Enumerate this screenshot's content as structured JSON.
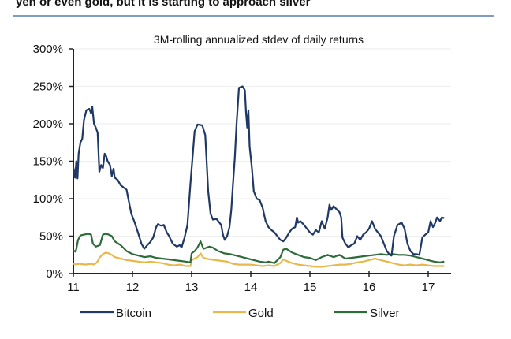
{
  "header": {
    "text": "yen or even gold, but it is starting to approach silver"
  },
  "chart_data": {
    "type": "line",
    "title": "3M-rolling annualized stdev of daily returns",
    "xlabel": "",
    "ylabel": "",
    "xlim": [
      11,
      17.3
    ],
    "ylim": [
      0,
      300
    ],
    "x_ticks": [
      11,
      12,
      13,
      14,
      15,
      16,
      17
    ],
    "x_tick_labels": [
      "11",
      "12",
      "13",
      "14",
      "15",
      "16",
      "17"
    ],
    "y_ticks": [
      0,
      50,
      100,
      150,
      200,
      250,
      300
    ],
    "y_tick_labels": [
      "0%",
      "50%",
      "100%",
      "150%",
      "200%",
      "250%",
      "300%"
    ],
    "grid": "horizontal-light",
    "legend": {
      "placement": "bottom",
      "entries": [
        "Bitcoin",
        "Gold",
        "Silver"
      ]
    },
    "series": [
      {
        "name": "Bitcoin",
        "color": "#1f3864",
        "points": [
          [
            11.0,
            142
          ],
          [
            11.03,
            128
          ],
          [
            11.05,
            150
          ],
          [
            11.07,
            127
          ],
          [
            11.09,
            160
          ],
          [
            11.12,
            175
          ],
          [
            11.15,
            180
          ],
          [
            11.18,
            205
          ],
          [
            11.22,
            218
          ],
          [
            11.27,
            220
          ],
          [
            11.3,
            214
          ],
          [
            11.32,
            223
          ],
          [
            11.35,
            200
          ],
          [
            11.38,
            195
          ],
          [
            11.41,
            188
          ],
          [
            11.43,
            155
          ],
          [
            11.44,
            136
          ],
          [
            11.47,
            145
          ],
          [
            11.5,
            141
          ],
          [
            11.53,
            160
          ],
          [
            11.55,
            158
          ],
          [
            11.58,
            150
          ],
          [
            11.62,
            145
          ],
          [
            11.65,
            130
          ],
          [
            11.68,
            140
          ],
          [
            11.7,
            128
          ],
          [
            11.75,
            125
          ],
          [
            11.8,
            118
          ],
          [
            11.85,
            115
          ],
          [
            11.9,
            112
          ],
          [
            11.93,
            100
          ],
          [
            11.98,
            80
          ],
          [
            12.03,
            70
          ],
          [
            12.08,
            58
          ],
          [
            12.12,
            48
          ],
          [
            12.15,
            40
          ],
          [
            12.2,
            33
          ],
          [
            12.25,
            38
          ],
          [
            12.3,
            42
          ],
          [
            12.35,
            48
          ],
          [
            12.4,
            62
          ],
          [
            12.43,
            66
          ],
          [
            12.48,
            64
          ],
          [
            12.53,
            65
          ],
          [
            12.58,
            55
          ],
          [
            12.62,
            50
          ],
          [
            12.68,
            40
          ],
          [
            12.75,
            36
          ],
          [
            12.8,
            38
          ],
          [
            12.83,
            35
          ],
          [
            12.88,
            48
          ],
          [
            12.93,
            65
          ],
          [
            12.98,
            120
          ],
          [
            13.05,
            190
          ],
          [
            13.1,
            199
          ],
          [
            13.18,
            198
          ],
          [
            13.23,
            185
          ],
          [
            13.28,
            110
          ],
          [
            13.32,
            80
          ],
          [
            13.36,
            72
          ],
          [
            13.42,
            73
          ],
          [
            13.47,
            68
          ],
          [
            13.5,
            65
          ],
          [
            13.53,
            52
          ],
          [
            13.56,
            45
          ],
          [
            13.6,
            50
          ],
          [
            13.64,
            62
          ],
          [
            13.67,
            85
          ],
          [
            13.7,
            120
          ],
          [
            13.73,
            155
          ],
          [
            13.76,
            200
          ],
          [
            13.8,
            248
          ],
          [
            13.86,
            250
          ],
          [
            13.9,
            245
          ],
          [
            13.92,
            215
          ],
          [
            13.94,
            195
          ],
          [
            13.96,
            218
          ],
          [
            13.98,
            170
          ],
          [
            14.02,
            140
          ],
          [
            14.05,
            110
          ],
          [
            14.1,
            100
          ],
          [
            14.15,
            98
          ],
          [
            14.2,
            88
          ],
          [
            14.25,
            70
          ],
          [
            14.3,
            62
          ],
          [
            14.35,
            58
          ],
          [
            14.4,
            55
          ],
          [
            14.45,
            50
          ],
          [
            14.5,
            45
          ],
          [
            14.55,
            43
          ],
          [
            14.6,
            48
          ],
          [
            14.65,
            55
          ],
          [
            14.7,
            60
          ],
          [
            14.75,
            62
          ],
          [
            14.78,
            75
          ],
          [
            14.8,
            68
          ],
          [
            14.84,
            70
          ],
          [
            14.9,
            65
          ],
          [
            14.95,
            60
          ],
          [
            15.0,
            55
          ],
          [
            15.05,
            52
          ],
          [
            15.1,
            58
          ],
          [
            15.15,
            55
          ],
          [
            15.2,
            70
          ],
          [
            15.25,
            60
          ],
          [
            15.3,
            75
          ],
          [
            15.33,
            92
          ],
          [
            15.36,
            85
          ],
          [
            15.4,
            90
          ],
          [
            15.45,
            86
          ],
          [
            15.5,
            82
          ],
          [
            15.53,
            75
          ],
          [
            15.55,
            48
          ],
          [
            15.6,
            40
          ],
          [
            15.65,
            35
          ],
          [
            15.7,
            38
          ],
          [
            15.75,
            40
          ],
          [
            15.8,
            50
          ],
          [
            15.85,
            45
          ],
          [
            15.9,
            52
          ],
          [
            15.95,
            55
          ],
          [
            16.0,
            60
          ],
          [
            16.05,
            70
          ],
          [
            16.1,
            60
          ],
          [
            16.15,
            55
          ],
          [
            16.2,
            50
          ],
          [
            16.25,
            40
          ],
          [
            16.3,
            30
          ],
          [
            16.35,
            25
          ],
          [
            16.38,
            24
          ],
          [
            16.42,
            50
          ],
          [
            16.48,
            65
          ],
          [
            16.55,
            68
          ],
          [
            16.6,
            60
          ],
          [
            16.65,
            40
          ],
          [
            16.7,
            30
          ],
          [
            16.75,
            26
          ],
          [
            16.8,
            26
          ],
          [
            16.85,
            25
          ],
          [
            16.9,
            48
          ],
          [
            16.95,
            52
          ],
          [
            17.0,
            55
          ],
          [
            17.04,
            70
          ],
          [
            17.08,
            62
          ],
          [
            17.12,
            68
          ],
          [
            17.15,
            75
          ],
          [
            17.2,
            70
          ],
          [
            17.23,
            75
          ],
          [
            17.27,
            74
          ]
        ]
      },
      {
        "name": "Gold",
        "color": "#e8b84a",
        "points": [
          [
            11.0,
            13
          ],
          [
            11.05,
            12
          ],
          [
            11.1,
            13
          ],
          [
            11.2,
            12
          ],
          [
            11.3,
            13
          ],
          [
            11.35,
            12
          ],
          [
            11.4,
            15
          ],
          [
            11.45,
            22
          ],
          [
            11.5,
            26
          ],
          [
            11.55,
            28
          ],
          [
            11.6,
            27
          ],
          [
            11.65,
            25
          ],
          [
            11.7,
            22
          ],
          [
            11.8,
            20
          ],
          [
            11.9,
            18
          ],
          [
            12.0,
            17
          ],
          [
            12.1,
            16
          ],
          [
            12.2,
            15
          ],
          [
            12.3,
            16
          ],
          [
            12.4,
            15
          ],
          [
            12.5,
            14
          ],
          [
            12.6,
            12
          ],
          [
            12.7,
            11
          ],
          [
            12.8,
            12
          ],
          [
            12.9,
            10
          ],
          [
            12.98,
            10
          ],
          [
            13.0,
            18
          ],
          [
            13.05,
            20
          ],
          [
            13.1,
            22
          ],
          [
            13.15,
            27
          ],
          [
            13.2,
            21
          ],
          [
            13.3,
            19
          ],
          [
            13.4,
            18
          ],
          [
            13.5,
            17
          ],
          [
            13.6,
            16
          ],
          [
            13.7,
            13
          ],
          [
            13.8,
            12
          ],
          [
            13.9,
            12
          ],
          [
            14.0,
            12
          ],
          [
            14.1,
            11
          ],
          [
            14.2,
            10
          ],
          [
            14.3,
            11
          ],
          [
            14.4,
            10
          ],
          [
            14.5,
            14
          ],
          [
            14.55,
            19
          ],
          [
            14.6,
            17
          ],
          [
            14.7,
            14
          ],
          [
            14.8,
            12
          ],
          [
            14.9,
            11
          ],
          [
            15.0,
            10
          ],
          [
            15.1,
            9
          ],
          [
            15.2,
            9
          ],
          [
            15.3,
            10
          ],
          [
            15.4,
            11
          ],
          [
            15.5,
            12
          ],
          [
            15.6,
            12
          ],
          [
            15.7,
            13
          ],
          [
            15.8,
            15
          ],
          [
            15.9,
            16
          ],
          [
            16.0,
            18
          ],
          [
            16.1,
            20
          ],
          [
            16.2,
            18
          ],
          [
            16.3,
            16
          ],
          [
            16.4,
            14
          ],
          [
            16.5,
            12
          ],
          [
            16.6,
            11
          ],
          [
            16.7,
            12
          ],
          [
            16.8,
            11
          ],
          [
            16.9,
            12
          ],
          [
            17.0,
            11
          ],
          [
            17.1,
            10
          ],
          [
            17.2,
            10
          ],
          [
            17.27,
            10
          ]
        ]
      },
      {
        "name": "Silver",
        "color": "#2e6b3a",
        "points": [
          [
            11.0,
            31
          ],
          [
            11.04,
            29
          ],
          [
            11.08,
            45
          ],
          [
            11.12,
            51
          ],
          [
            11.18,
            52
          ],
          [
            11.25,
            53
          ],
          [
            11.3,
            52
          ],
          [
            11.33,
            40
          ],
          [
            11.38,
            36
          ],
          [
            11.45,
            38
          ],
          [
            11.5,
            52
          ],
          [
            11.55,
            53
          ],
          [
            11.6,
            52
          ],
          [
            11.65,
            50
          ],
          [
            11.7,
            43
          ],
          [
            11.8,
            38
          ],
          [
            11.9,
            30
          ],
          [
            12.0,
            26
          ],
          [
            12.1,
            24
          ],
          [
            12.2,
            22
          ],
          [
            12.3,
            23
          ],
          [
            12.4,
            21
          ],
          [
            12.5,
            20
          ],
          [
            12.6,
            19
          ],
          [
            12.7,
            18
          ],
          [
            12.8,
            17
          ],
          [
            12.9,
            16
          ],
          [
            12.98,
            15
          ],
          [
            13.0,
            27
          ],
          [
            13.05,
            30
          ],
          [
            13.1,
            35
          ],
          [
            13.15,
            43
          ],
          [
            13.2,
            33
          ],
          [
            13.3,
            36
          ],
          [
            13.35,
            35
          ],
          [
            13.45,
            30
          ],
          [
            13.55,
            27
          ],
          [
            13.65,
            26
          ],
          [
            13.75,
            24
          ],
          [
            13.85,
            22
          ],
          [
            13.95,
            20
          ],
          [
            14.05,
            18
          ],
          [
            14.15,
            16
          ],
          [
            14.25,
            15
          ],
          [
            14.3,
            16
          ],
          [
            14.4,
            14
          ],
          [
            14.5,
            22
          ],
          [
            14.55,
            32
          ],
          [
            14.6,
            33
          ],
          [
            14.7,
            28
          ],
          [
            14.8,
            25
          ],
          [
            14.9,
            22
          ],
          [
            15.0,
            21
          ],
          [
            15.1,
            18
          ],
          [
            15.2,
            22
          ],
          [
            15.3,
            25
          ],
          [
            15.4,
            22
          ],
          [
            15.5,
            25
          ],
          [
            15.6,
            20
          ],
          [
            15.7,
            21
          ],
          [
            15.8,
            22
          ],
          [
            15.9,
            23
          ],
          [
            16.0,
            24
          ],
          [
            16.1,
            25
          ],
          [
            16.2,
            26
          ],
          [
            16.3,
            25
          ],
          [
            16.4,
            26
          ],
          [
            16.5,
            25
          ],
          [
            16.6,
            25
          ],
          [
            16.7,
            24
          ],
          [
            16.8,
            22
          ],
          [
            16.9,
            20
          ],
          [
            17.0,
            18
          ],
          [
            17.05,
            17
          ],
          [
            17.1,
            16
          ],
          [
            17.2,
            15
          ],
          [
            17.27,
            16
          ]
        ]
      }
    ]
  }
}
